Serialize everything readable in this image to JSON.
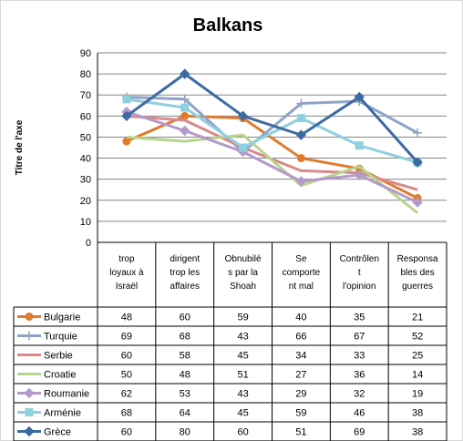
{
  "chart_data": {
    "type": "line",
    "title": "Balkans",
    "ylabel": "Titre de l'axe",
    "ylim": [
      0,
      90
    ],
    "ytick_step": 10,
    "grid": true,
    "legend": "data-table-left",
    "categories": [
      [
        "trop",
        "loyaux à",
        "Israël"
      ],
      [
        "dirigent",
        "trop les",
        "affaires"
      ],
      [
        "Obnubilé",
        "s par la",
        "Shoah"
      ],
      [
        "Se",
        "comporte",
        "nt mal"
      ],
      [
        "Contrôlen",
        "t",
        "l'opinion"
      ],
      [
        "Responsa",
        "bles des",
        "guerres"
      ]
    ],
    "series": [
      {
        "name": "Bulgarie",
        "color": "#e07b2e",
        "marker": "circle",
        "values": [
          48,
          60,
          59,
          40,
          35,
          21
        ]
      },
      {
        "name": "Turquie",
        "color": "#8fa3c8",
        "marker": "plus",
        "values": [
          69,
          68,
          43,
          66,
          67,
          52
        ]
      },
      {
        "name": "Serbie",
        "color": "#d98a8a",
        "marker": "none",
        "values": [
          60,
          58,
          45,
          34,
          33,
          25
        ]
      },
      {
        "name": "Croatie",
        "color": "#b8d48c",
        "marker": "none",
        "values": [
          50,
          48,
          51,
          27,
          36,
          14
        ]
      },
      {
        "name": "Roumanie",
        "color": "#b49ac9",
        "marker": "diamond",
        "values": [
          62,
          53,
          43,
          29,
          32,
          19
        ]
      },
      {
        "name": "Arménie",
        "color": "#8fcfdf",
        "marker": "square",
        "values": [
          68,
          64,
          45,
          59,
          46,
          38
        ]
      },
      {
        "name": "Grèce",
        "color": "#3d6aa3",
        "marker": "diamond",
        "values": [
          60,
          80,
          60,
          51,
          69,
          38
        ]
      }
    ]
  }
}
